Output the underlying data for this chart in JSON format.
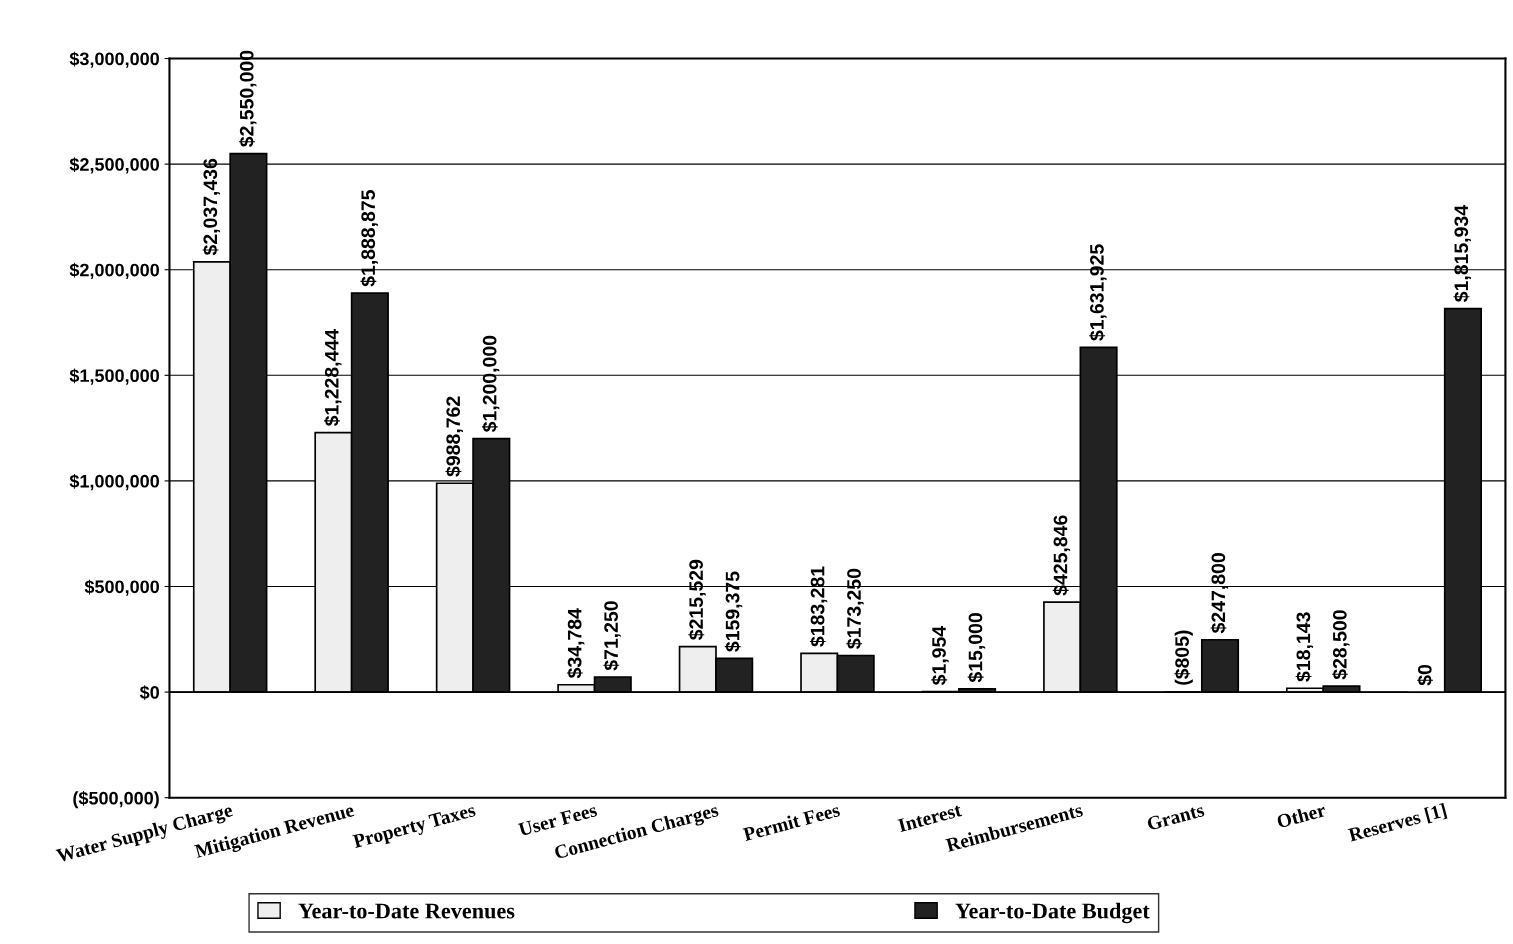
{
  "chart_data": {
    "type": "bar",
    "categories": [
      "Water Supply Charge",
      "Mitigation Revenue",
      "Property Taxes",
      "User Fees",
      "Connection Charges",
      "Permit Fees",
      "Interest",
      "Reimbursements",
      "Grants",
      "Other",
      "Reserves [1]"
    ],
    "series": [
      {
        "name": "Year-to-Date Revenues",
        "color": "#eeeeee",
        "values": [
          2037436,
          1228444,
          988762,
          34784,
          215529,
          183281,
          1954,
          425846,
          -805,
          18143,
          0
        ],
        "value_labels": [
          "$2,037,436",
          "$1,228,444",
          "$988,762",
          "$34,784",
          "$215,529",
          "$183,281",
          "$1,954",
          "$425,846",
          "($805)",
          "$18,143",
          "$0"
        ]
      },
      {
        "name": "Year-to-Date Budget",
        "color": "#222222",
        "values": [
          2550000,
          1888875,
          1200000,
          71250,
          159375,
          173250,
          15000,
          1631925,
          247800,
          28500,
          1815934
        ],
        "value_labels": [
          "$2,550,000",
          "$1,888,875",
          "$1,200,000",
          "$71,250",
          "$159,375",
          "$173,250",
          "$15,000",
          "$1,631,925",
          "$247,800",
          "$28,500",
          "$1,815,934"
        ]
      }
    ],
    "ylim": [
      -500000,
      3000000
    ],
    "yticks": [
      {
        "value": -500000,
        "label": "($500,000)"
      },
      {
        "value": 0,
        "label": "$0"
      },
      {
        "value": 500000,
        "label": "$500,000"
      },
      {
        "value": 1000000,
        "label": "$1,000,000"
      },
      {
        "value": 1500000,
        "label": "$1,500,000"
      },
      {
        "value": 2000000,
        "label": "$2,000,000"
      },
      {
        "value": 2500000,
        "label": "$2,500,000"
      },
      {
        "value": 3000000,
        "label": "$3,000,000"
      }
    ],
    "grid": "y",
    "legend": "bottom"
  }
}
